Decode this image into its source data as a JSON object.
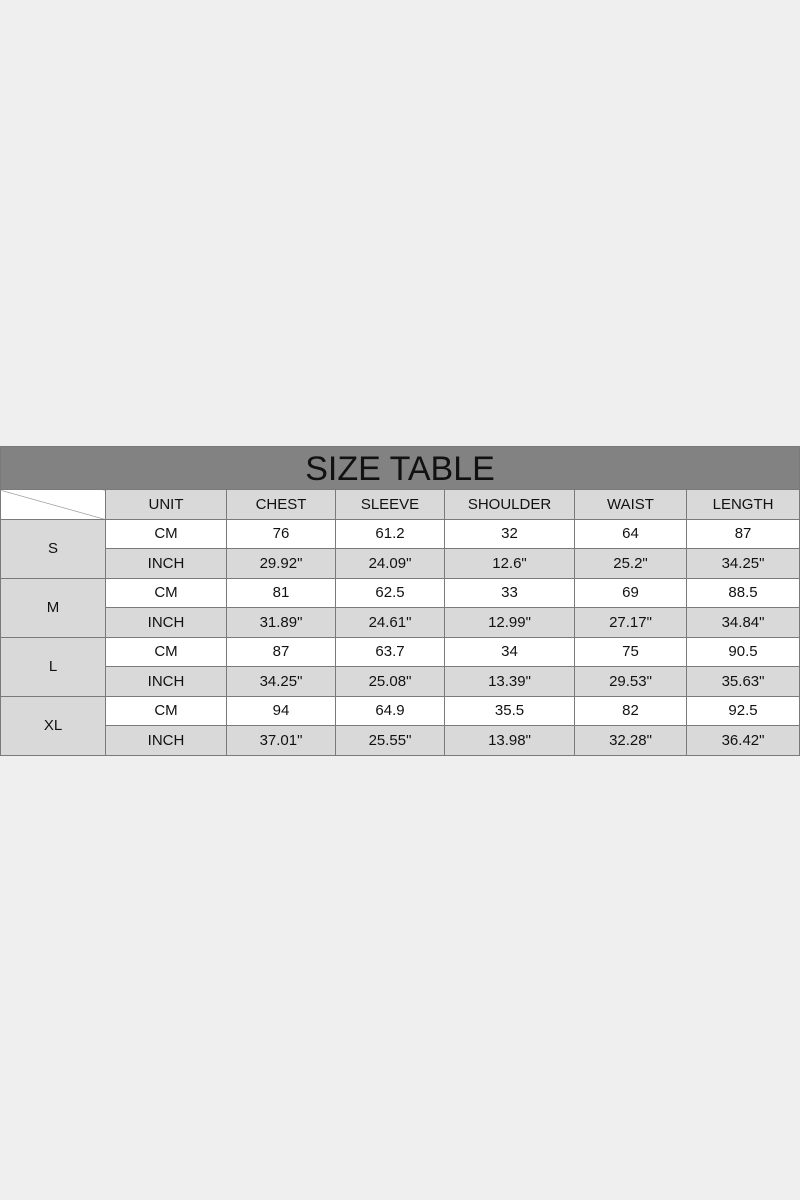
{
  "title": "SIZE TABLE",
  "columns": [
    "UNIT",
    "CHEST",
    "SLEEVE",
    "SHOULDER",
    "WAIST",
    "LENGTH"
  ],
  "rows": [
    {
      "size": "S",
      "cm": [
        "CM",
        "76",
        "61.2",
        "32",
        "64",
        "87"
      ],
      "inch": [
        "INCH",
        "29.92\"",
        "24.09\"",
        "12.6\"",
        "25.2\"",
        "34.25\""
      ]
    },
    {
      "size": "M",
      "cm": [
        "CM",
        "81",
        "62.5",
        "33",
        "69",
        "88.5"
      ],
      "inch": [
        "INCH",
        "31.89\"",
        "24.61\"",
        "12.99\"",
        "27.17\"",
        "34.84\""
      ]
    },
    {
      "size": "L",
      "cm": [
        "CM",
        "87",
        "63.7",
        "34",
        "75",
        "90.5"
      ],
      "inch": [
        "INCH",
        "34.25\"",
        "25.08\"",
        "13.39\"",
        "29.53\"",
        "35.63\""
      ]
    },
    {
      "size": "XL",
      "cm": [
        "CM",
        "94",
        "64.9",
        "35.5",
        "82",
        "92.5"
      ],
      "inch": [
        "INCH",
        "37.01\"",
        "25.55\"",
        "13.98\"",
        "32.28\"",
        "36.42\""
      ]
    }
  ],
  "colors": {
    "background": "#efefef",
    "title_bar": "#828282",
    "shaded_cell": "#d9d9d9",
    "border": "#7a7a7a"
  }
}
